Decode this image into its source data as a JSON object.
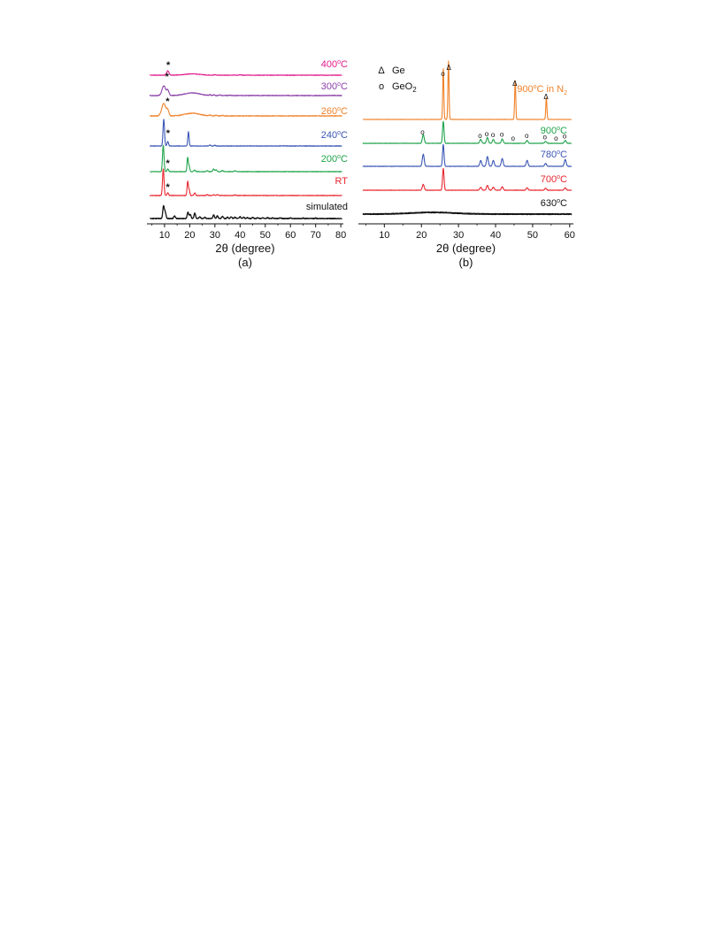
{
  "chart_data": [
    {
      "panel": "(a)",
      "type": "line",
      "xlabel": "2θ (degree)",
      "xlim": [
        3,
        81
      ],
      "xticks": [
        10,
        20,
        30,
        40,
        50,
        60,
        70,
        80
      ],
      "series": [
        {
          "name": "400°C",
          "color": "#e0198a",
          "star_x": 11.5,
          "peaks": [
            [
              11.3,
              10,
              0.45
            ],
            [
              21,
              3,
              3
            ],
            [
              30,
              1,
              0.4
            ],
            [
              40,
              0.8,
              0.4
            ]
          ]
        },
        {
          "name": "300°C",
          "color": "#8b3fa8",
          "star_x": 11.0,
          "peaks": [
            [
              9.7,
              22,
              0.7
            ],
            [
              11.3,
              12,
              0.45
            ],
            [
              21,
              6,
              3
            ],
            [
              28,
              2,
              0.3
            ],
            [
              29.5,
              1.5,
              0.3
            ],
            [
              32,
              1.5,
              0.3
            ],
            [
              36,
              1,
              0.3
            ]
          ]
        },
        {
          "name": "260°C",
          "color": "#f0822a",
          "star_x": 11.2,
          "peaks": [
            [
              9.7,
              28,
              0.8
            ],
            [
              11.3,
              12,
              0.45
            ],
            [
              21,
              6,
              3
            ],
            [
              28,
              2,
              0.3
            ],
            [
              30.5,
              1.5,
              0.3
            ],
            [
              33,
              1.5,
              0.3
            ]
          ]
        },
        {
          "name": "240°C",
          "color": "#3a56b5",
          "star_x": 11.4,
          "peaks": [
            [
              9.7,
              60,
              0.3
            ],
            [
              11.3,
              10,
              0.3
            ],
            [
              19.5,
              32,
              0.25
            ],
            [
              28,
              2,
              0.3
            ],
            [
              30,
              1.5,
              0.3
            ]
          ]
        },
        {
          "name": "200°C",
          "color": "#1ea34a",
          "star_x": 11.3,
          "peaks": [
            [
              9.5,
              60,
              0.3
            ],
            [
              11.3,
              6,
              0.3
            ],
            [
              19.2,
              32,
              0.25
            ],
            [
              19.8,
              12,
              0.25
            ],
            [
              22,
              4,
              0.3
            ],
            [
              27,
              2.5,
              0.3
            ],
            [
              29.5,
              6,
              0.3
            ],
            [
              30.5,
              4,
              0.3
            ],
            [
              33,
              2.5,
              0.3
            ],
            [
              38,
              2,
              0.3
            ]
          ]
        },
        {
          "name": "RT",
          "color": "#e8262e",
          "star_x": 11.3,
          "peaks": [
            [
              9.5,
              60,
              0.3
            ],
            [
              11.3,
              6,
              0.3
            ],
            [
              19.2,
              32,
              0.25
            ],
            [
              19.8,
              12,
              0.25
            ],
            [
              22,
              6,
              0.3
            ],
            [
              27,
              2,
              0.3
            ],
            [
              29.5,
              2,
              0.3
            ],
            [
              31,
              2,
              0.3
            ],
            [
              38,
              1.5,
              0.3
            ]
          ]
        },
        {
          "name": "simulated",
          "color": "#111111",
          "star_x": null,
          "peaks": [
            [
              9.6,
              28,
              0.3
            ],
            [
              10.3,
              14,
              0.3
            ],
            [
              14,
              6,
              0.3
            ],
            [
              19.3,
              14,
              0.3
            ],
            [
              20.2,
              10,
              0.3
            ],
            [
              22,
              12,
              0.3
            ],
            [
              24,
              4,
              0.3
            ],
            [
              26,
              3,
              0.3
            ],
            [
              29.5,
              8,
              0.3
            ],
            [
              31,
              6,
              0.3
            ],
            [
              33,
              5,
              0.3
            ],
            [
              35,
              3,
              0.3
            ],
            [
              36.5,
              4,
              0.3
            ],
            [
              38,
              3,
              0.3
            ],
            [
              40,
              4,
              0.3
            ],
            [
              41.5,
              3,
              0.3
            ],
            [
              43,
              2,
              0.3
            ],
            [
              45,
              2.5,
              0.3
            ],
            [
              47,
              2,
              0.3
            ],
            [
              49,
              2,
              0.3
            ],
            [
              51,
              2,
              0.3
            ],
            [
              53,
              1.5,
              0.3
            ],
            [
              56,
              1.5,
              0.3
            ],
            [
              60,
              1.5,
              0.3
            ],
            [
              65,
              1,
              0.3
            ],
            [
              70,
              1,
              0.3
            ]
          ]
        }
      ],
      "star_symbol": "*"
    },
    {
      "panel": "(b)",
      "type": "line",
      "xlabel": "2θ (degree)",
      "xlim": [
        3,
        61
      ],
      "xticks": [
        10,
        20,
        30,
        40,
        50,
        60
      ],
      "legend": [
        {
          "symbol": "Δ",
          "label": "Ge"
        },
        {
          "symbol": "o",
          "label": "GeO",
          "sub": "2"
        }
      ],
      "series": [
        {
          "name": "900°C in N2",
          "label_main": "900",
          "label_sup": "o",
          "label_rest": "C in N",
          "label_sub": "2",
          "color": "#f0822a",
          "peaks": [
            [
              25.9,
              105,
              0.15
            ],
            [
              27.3,
              120,
              0.15
            ],
            [
              45.3,
              80,
              0.15
            ],
            [
              53.7,
              45,
              0.15
            ]
          ],
          "markers": [
            [
              25.8,
              "o"
            ],
            [
              27.4,
              "Δ"
            ],
            [
              45.2,
              "Δ"
            ],
            [
              53.6,
              "Δ"
            ]
          ]
        },
        {
          "name": "900°C",
          "label_main": "900",
          "label_sup": "o",
          "label_rest": "C",
          "label_sub": "",
          "color": "#1ea34a",
          "peaks": [
            [
              20.5,
              18,
              0.25
            ],
            [
              25.9,
              45,
              0.2
            ],
            [
              36,
              8,
              0.25
            ],
            [
              37.8,
              12,
              0.25
            ],
            [
              39.4,
              8,
              0.25
            ],
            [
              41.8,
              9,
              0.25
            ],
            [
              48.5,
              6,
              0.25
            ],
            [
              53.5,
              4,
              0.25
            ],
            [
              58.8,
              6,
              0.25
            ]
          ],
          "markers": [
            [
              20.3,
              "o"
            ],
            [
              35.8,
              "o"
            ],
            [
              37.6,
              "o"
            ],
            [
              39.3,
              "o"
            ],
            [
              41.7,
              "o"
            ],
            [
              44.7,
              "o"
            ],
            [
              48.4,
              "o"
            ],
            [
              53.3,
              "o"
            ],
            [
              56.3,
              "o"
            ],
            [
              58.6,
              "o"
            ]
          ]
        },
        {
          "name": "780°C",
          "label_main": "780",
          "label_sup": "o",
          "label_rest": "C",
          "label_sub": "",
          "color": "#3a56b5",
          "peaks": [
            [
              20.5,
              25,
              0.25
            ],
            [
              25.9,
              45,
              0.2
            ],
            [
              36,
              12,
              0.25
            ],
            [
              37.8,
              20,
              0.25
            ],
            [
              39.4,
              12,
              0.25
            ],
            [
              41.8,
              16,
              0.25
            ],
            [
              48.5,
              12,
              0.25
            ],
            [
              53.5,
              6,
              0.25
            ],
            [
              58.8,
              14,
              0.25
            ]
          ],
          "markers": []
        },
        {
          "name": "700°C",
          "label_main": "700",
          "label_sup": "o",
          "label_rest": "C",
          "label_sub": "",
          "color": "#e8262e",
          "peaks": [
            [
              20.5,
              12,
              0.25
            ],
            [
              25.9,
              45,
              0.2
            ],
            [
              36,
              6,
              0.25
            ],
            [
              37.8,
              10,
              0.25
            ],
            [
              39.4,
              6,
              0.25
            ],
            [
              41.8,
              7,
              0.25
            ],
            [
              48.5,
              5,
              0.25
            ],
            [
              53.5,
              4,
              0.25
            ],
            [
              58.8,
              5,
              0.25
            ]
          ],
          "markers": []
        },
        {
          "name": "630°C",
          "label_main": "630",
          "label_sup": "o",
          "label_rest": "C",
          "label_sub": "",
          "color": "#111111",
          "peaks": [
            [
              23,
              3.5,
              6
            ]
          ],
          "markers": []
        }
      ]
    }
  ],
  "panel_a": {
    "labels": [
      {
        "main": "400",
        "sup": "o",
        "rest": "C"
      },
      {
        "main": "300",
        "sup": "o",
        "rest": "C"
      },
      {
        "main": "260",
        "sup": "o",
        "rest": "C"
      },
      {
        "main": "240",
        "sup": "o",
        "rest": "C"
      },
      {
        "main": "200",
        "sup": "o",
        "rest": "C"
      },
      {
        "main": "RT",
        "sup": "",
        "rest": ""
      },
      {
        "main": "simulated",
        "sup": "",
        "rest": ""
      }
    ]
  }
}
